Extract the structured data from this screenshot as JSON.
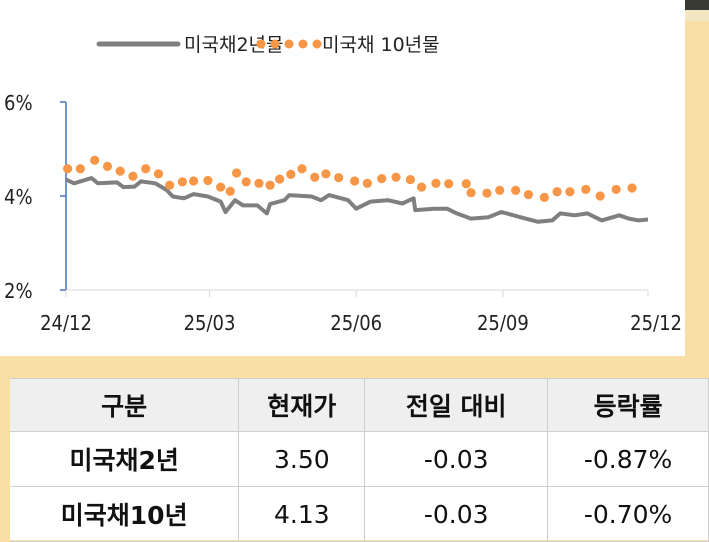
{
  "chart_data": {
    "type": "line",
    "xlabel": "",
    "ylabel": "",
    "ylim": [
      2,
      6
    ],
    "yticks": [
      "2%",
      "4%",
      "6%"
    ],
    "xlim": [
      "2024-12-01",
      "2025-12-01"
    ],
    "xticks": [
      "24/12",
      "25/03",
      "25/06",
      "25/09",
      "25/12"
    ],
    "legend_position": "top",
    "grid": false,
    "series": [
      {
        "name": "미국채2년물",
        "style": "line",
        "color": "#7f7f7f",
        "x": [
          "2024-12-01",
          "2024-12-06",
          "2024-12-17",
          "2024-12-21",
          "2025-01-02",
          "2025-01-06",
          "2025-01-13",
          "2025-01-17",
          "2025-01-26",
          "2025-02-02",
          "2025-02-06",
          "2025-02-13",
          "2025-02-19",
          "2025-02-28",
          "2025-03-08",
          "2025-03-11",
          "2025-03-17",
          "2025-03-22",
          "2025-03-31",
          "2025-04-06",
          "2025-04-08",
          "2025-04-17",
          "2025-04-20",
          "2025-05-04",
          "2025-05-10",
          "2025-05-15",
          "2025-05-27",
          "2025-06-01",
          "2025-06-10",
          "2025-06-21",
          "2025-06-30",
          "2025-07-07",
          "2025-07-08",
          "2025-07-20",
          "2025-07-28",
          "2025-08-03",
          "2025-08-12",
          "2025-08-23",
          "2025-08-31",
          "2025-09-12",
          "2025-09-23",
          "2025-10-02",
          "2025-10-07",
          "2025-10-16",
          "2025-10-24",
          "2025-11-02",
          "2025-11-13",
          "2025-11-19",
          "2025-11-25",
          "2025-12-01"
        ],
        "y": [
          4.35,
          4.27,
          4.38,
          4.27,
          4.29,
          4.19,
          4.2,
          4.31,
          4.27,
          4.13,
          3.99,
          3.95,
          4.04,
          3.99,
          3.88,
          3.66,
          3.91,
          3.8,
          3.8,
          3.63,
          3.83,
          3.91,
          4.02,
          3.99,
          3.91,
          4.02,
          3.91,
          3.73,
          3.88,
          3.91,
          3.84,
          3.95,
          3.7,
          3.73,
          3.73,
          3.63,
          3.52,
          3.55,
          3.66,
          3.55,
          3.45,
          3.48,
          3.63,
          3.59,
          3.63,
          3.48,
          3.59,
          3.52,
          3.48,
          3.5
        ]
      },
      {
        "name": "미국채 10년물",
        "style": "dots",
        "color": "#f79646",
        "x": [
          "2024-12-02",
          "2024-12-10",
          "2024-12-19",
          "2024-12-27",
          "2025-01-04",
          "2025-01-12",
          "2025-01-20",
          "2025-01-28",
          "2025-02-04",
          "2025-02-12",
          "2025-02-19",
          "2025-02-28",
          "2025-03-08",
          "2025-03-14",
          "2025-03-18",
          "2025-03-24",
          "2025-04-01",
          "2025-04-08",
          "2025-04-14",
          "2025-04-21",
          "2025-04-28",
          "2025-05-06",
          "2025-05-13",
          "2025-05-21",
          "2025-05-31",
          "2025-06-08",
          "2025-06-17",
          "2025-06-26",
          "2025-07-05",
          "2025-07-12",
          "2025-07-21",
          "2025-07-29",
          "2025-08-09",
          "2025-08-12",
          "2025-08-22",
          "2025-08-30",
          "2025-09-09",
          "2025-09-17",
          "2025-09-27",
          "2025-10-05",
          "2025-10-13",
          "2025-10-23",
          "2025-11-01",
          "2025-11-11",
          "2025-11-21"
        ],
        "y": [
          4.58,
          4.58,
          4.76,
          4.63,
          4.53,
          4.42,
          4.58,
          4.47,
          4.23,
          4.3,
          4.32,
          4.33,
          4.19,
          4.1,
          4.49,
          4.3,
          4.27,
          4.23,
          4.36,
          4.46,
          4.58,
          4.4,
          4.47,
          4.39,
          4.32,
          4.27,
          4.37,
          4.4,
          4.35,
          4.19,
          4.27,
          4.26,
          4.26,
          4.07,
          4.06,
          4.12,
          4.12,
          4.03,
          3.97,
          4.09,
          4.09,
          4.14,
          4.0,
          4.14,
          4.17
        ]
      }
    ]
  },
  "table": {
    "headers": [
      "구분",
      "현재가",
      "전일 대비",
      "등락률"
    ],
    "rows": [
      {
        "name": "미국채2년",
        "price": "3.50",
        "change": "-0.03",
        "rate": "-0.87%"
      },
      {
        "name": "미국채10년",
        "price": "4.13",
        "change": "-0.03",
        "rate": "-0.70%"
      }
    ]
  },
  "colors": {
    "axis": "#4472c4",
    "background_accent": "#f7dfa6",
    "header_bg": "#efefef"
  }
}
